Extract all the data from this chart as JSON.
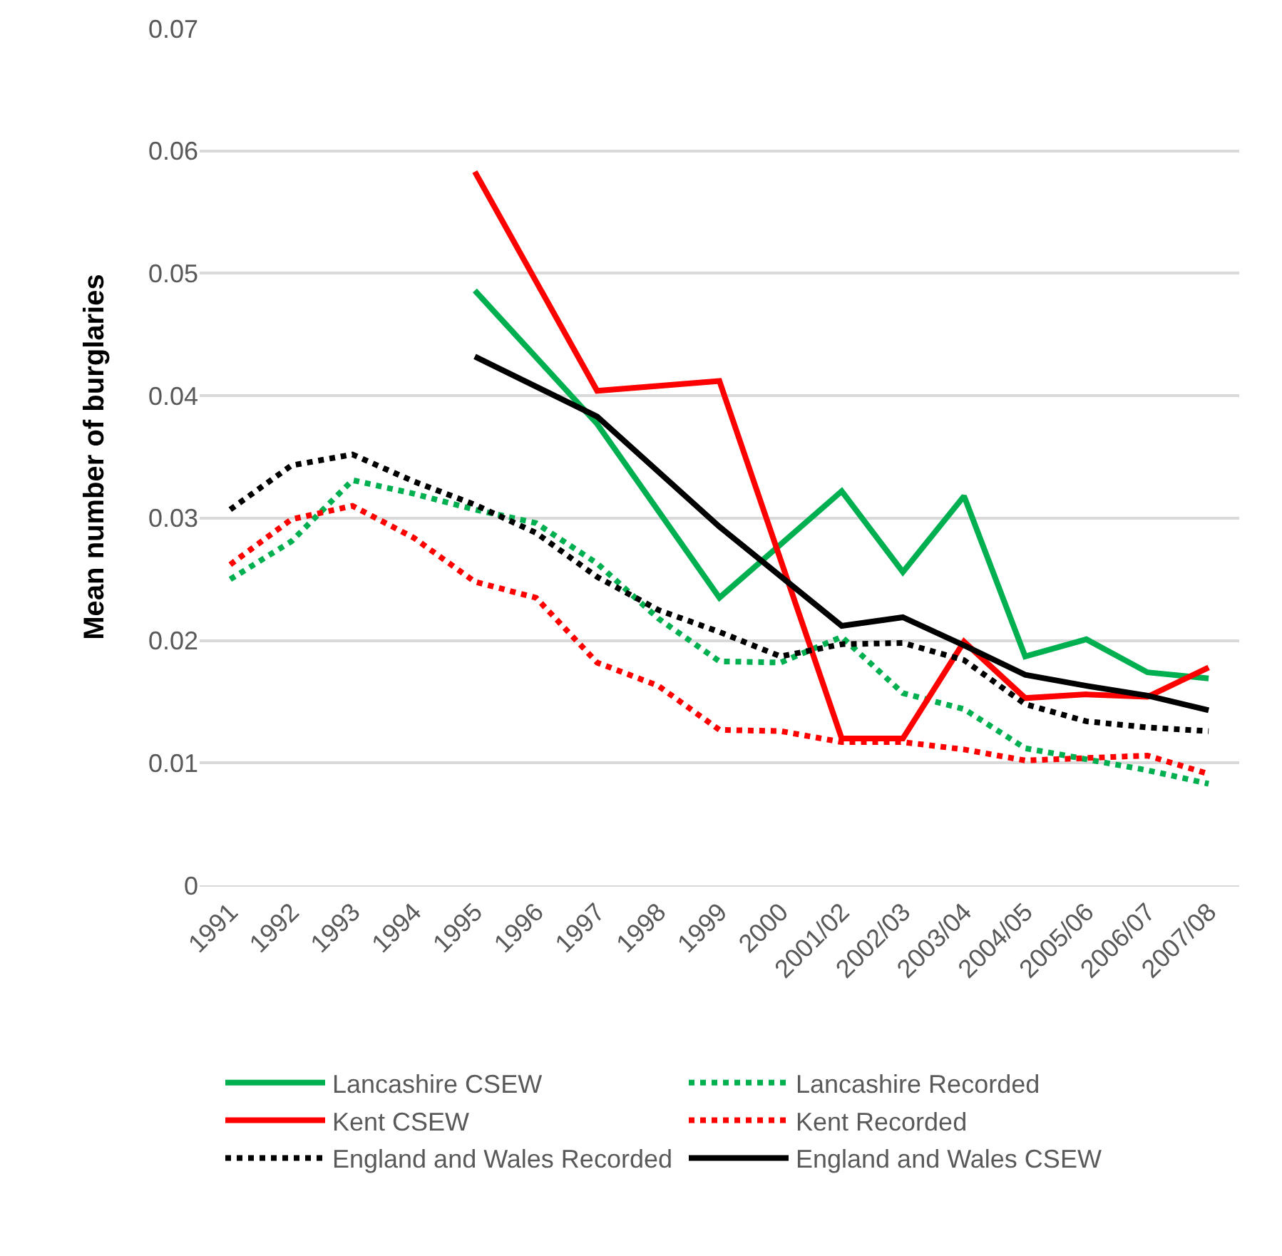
{
  "chart_data": {
    "type": "line",
    "ylabel": "Mean number of burglaries",
    "categories": [
      "1991",
      "1992",
      "1993",
      "1994",
      "1995",
      "1996",
      "1997",
      "1998",
      "1999",
      "2000",
      "2001/02",
      "2002/03",
      "2003/04",
      "2004/05",
      "2005/06",
      "2006/07",
      "2007/08"
    ],
    "ylim": [
      0,
      0.07
    ],
    "yticks": [
      0,
      0.01,
      0.02,
      0.03,
      0.04,
      0.05,
      0.06,
      0.07
    ],
    "grid": "y",
    "legend": "bottom",
    "marker": "none",
    "series": [
      {
        "name": "Lancashire CSEW",
        "color": "#00b050",
        "line_style": "solid",
        "values": [
          null,
          null,
          null,
          null,
          0.0486,
          null,
          0.0377,
          null,
          0.0235,
          null,
          0.0322,
          0.0256,
          0.0318,
          0.0187,
          0.0201,
          0.0174,
          0.0169
        ]
      },
      {
        "name": "Lancashire Recorded",
        "color": "#00b050",
        "line_style": "dotted",
        "values": [
          0.025,
          0.0281,
          0.0331,
          0.032,
          0.0307,
          0.0296,
          0.0263,
          0.0218,
          0.0183,
          0.0182,
          0.0203,
          0.0157,
          0.0144,
          0.0112,
          0.0103,
          0.0094,
          0.0083
        ]
      },
      {
        "name": "Kent CSEW",
        "color": "#ff0000",
        "line_style": "solid",
        "values": [
          null,
          null,
          null,
          null,
          0.0583,
          null,
          0.0404,
          null,
          0.0412,
          null,
          0.012,
          0.012,
          0.0199,
          0.0153,
          0.0156,
          0.0154,
          0.0178
        ]
      },
      {
        "name": "Kent Recorded",
        "color": "#ff0000",
        "line_style": "dotted",
        "values": [
          0.0262,
          0.0299,
          0.031,
          0.0284,
          0.0248,
          0.0235,
          0.0182,
          0.0163,
          0.0127,
          0.0126,
          0.0117,
          0.0117,
          0.0111,
          0.0102,
          0.0104,
          0.0106,
          0.0091
        ]
      },
      {
        "name": "England and Wales Recorded",
        "color": "#000000",
        "line_style": "dotted",
        "values": [
          0.0307,
          0.0343,
          0.0352,
          0.033,
          0.0311,
          0.0288,
          0.0252,
          0.0225,
          0.0207,
          0.0187,
          0.0197,
          0.0198,
          0.0184,
          0.0148,
          0.0134,
          0.0129,
          0.0126
        ]
      },
      {
        "name": "England and Wales CSEW",
        "color": "#000000",
        "line_style": "solid",
        "values": [
          null,
          null,
          null,
          null,
          0.0432,
          null,
          0.0383,
          null,
          0.0293,
          null,
          0.0212,
          0.0219,
          0.0196,
          0.0172,
          0.0163,
          0.0155,
          0.0143
        ]
      }
    ]
  }
}
